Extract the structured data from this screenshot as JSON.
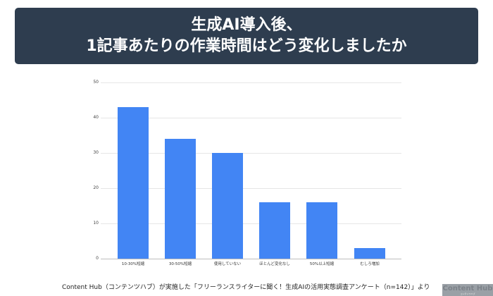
{
  "header": {
    "title_line1": "生成AI導入後、",
    "title_line2": "1記事あたりの作業時間はどう変化しましたか"
  },
  "chart_data": {
    "type": "bar",
    "title": "生成AI導入後、1記事あたりの作業時間はどう変化しましたか",
    "categories": [
      "10-30%短縮",
      "30-50%短縮",
      "使用していない",
      "ほとんど変化なし",
      "50%以上短縮",
      "むしろ増加"
    ],
    "values": [
      43,
      34,
      30,
      16,
      16,
      3
    ],
    "xlabel": "",
    "ylabel": "",
    "ylim": [
      0,
      50
    ],
    "yticks": [
      0,
      10,
      20,
      30,
      40,
      50
    ],
    "grid": true,
    "legend": "none",
    "bar_color": "#4285f4"
  },
  "footer": {
    "source": "Content Hub（コンテンツハブ）が実施した「フリーランスライターに聞く！生成AIの活用実態調査アンケート（n=142）」より"
  },
  "badge": {
    "label": "Content Hub",
    "sub": "コンテンツハブ"
  }
}
